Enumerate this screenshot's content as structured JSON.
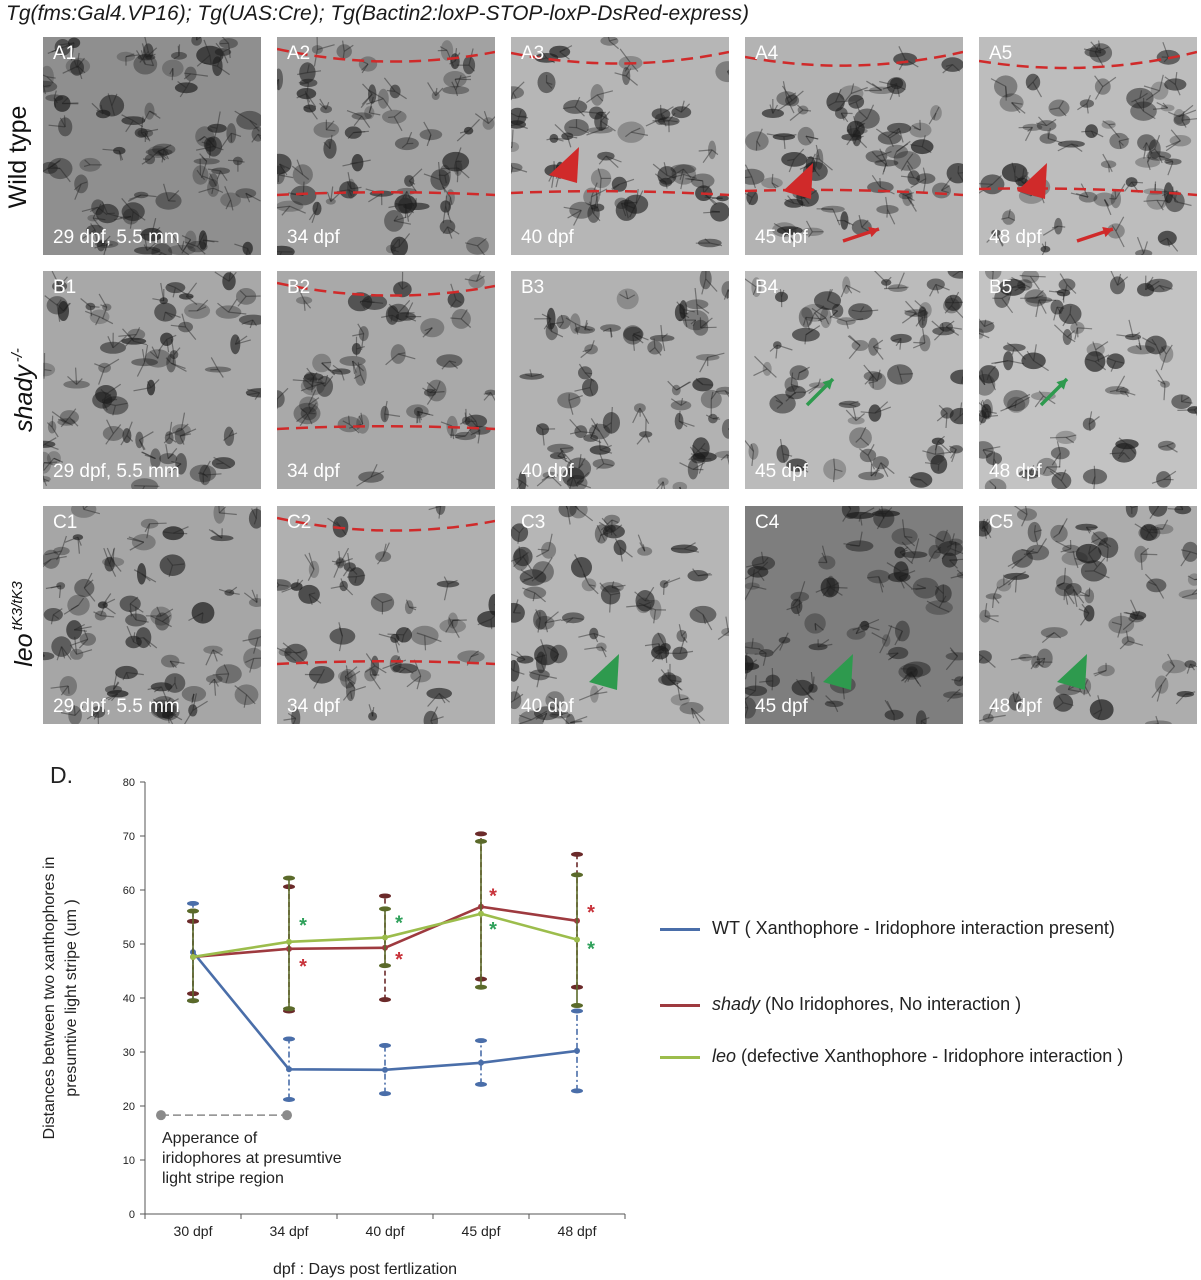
{
  "figure_title": "Tg(fms:Gal4.VP16); Tg(UAS:Cre); Tg(Bactin2:loxP-STOP-loxP-DsRed-express)",
  "rows": [
    {
      "label": "Wild type",
      "label_italic": "",
      "label_sup": "",
      "panels": [
        {
          "id": "A1",
          "age": "29 dpf, 5.5 mm",
          "bg": "#8f8f8f",
          "dashed_lines": 0,
          "marker": "none"
        },
        {
          "id": "A2",
          "age": "34 dpf",
          "bg": "#a2a2a2",
          "dashed_lines": 2,
          "marker": "none"
        },
        {
          "id": "A3",
          "age": "40 dpf",
          "bg": "#b6b6b6",
          "dashed_lines": 2,
          "marker": "red-arrowhead"
        },
        {
          "id": "A4",
          "age": "45 dpf",
          "bg": "#b3b3b3",
          "dashed_lines": 2,
          "marker": "red-arrowhead-arrow"
        },
        {
          "id": "A5",
          "age": "48 dpf",
          "bg": "#bdbdbd",
          "dashed_lines": 2,
          "marker": "red-arrowhead-arrow"
        }
      ]
    },
    {
      "label": "",
      "label_italic": "shady",
      "label_sup": "-/-",
      "panels": [
        {
          "id": "B1",
          "age": "29 dpf, 5.5 mm",
          "bg": "#a8a8a8",
          "dashed_lines": 0,
          "marker": "none"
        },
        {
          "id": "B2",
          "age": "34 dpf",
          "bg": "#a9a9a9",
          "dashed_lines": 2,
          "marker": "none"
        },
        {
          "id": "B3",
          "age": "40 dpf",
          "bg": "#b2b2b2",
          "dashed_lines": 0,
          "marker": "none"
        },
        {
          "id": "B4",
          "age": "45 dpf",
          "bg": "#bbbbbb",
          "dashed_lines": 0,
          "marker": "green-arrow"
        },
        {
          "id": "B5",
          "age": "48 dpf",
          "bg": "#c3c3c3",
          "dashed_lines": 0,
          "marker": "green-arrow"
        }
      ]
    },
    {
      "label": "",
      "label_italic": "leo",
      "label_sup": "tK3/tK3",
      "panels": [
        {
          "id": "C1",
          "age": "29 dpf, 5.5 mm",
          "bg": "#a6a6a6",
          "dashed_lines": 0,
          "marker": "none"
        },
        {
          "id": "C2",
          "age": "34 dpf",
          "bg": "#b0b0b0",
          "dashed_lines": 2,
          "marker": "none"
        },
        {
          "id": "C3",
          "age": "40 dpf",
          "bg": "#b6b6b6",
          "dashed_lines": 0,
          "marker": "green-arrowhead"
        },
        {
          "id": "C4",
          "age": "45 dpf",
          "bg": "#7e7e7e",
          "dashed_lines": 0,
          "marker": "green-arrowhead"
        },
        {
          "id": "C5",
          "age": "48 dpf",
          "bg": "#adadad",
          "dashed_lines": 0,
          "marker": "green-arrowhead"
        }
      ]
    }
  ],
  "colors": {
    "red_marker": "#d02a2a",
    "green_marker": "#2e9a4e",
    "wt": "#4a6ea9",
    "shady": "#9e3a3f",
    "leo": "#9cbd4c",
    "shady_bars": "#6b2a2a",
    "leo_bars": "#5b6a2a",
    "gray_note": "#8a8a8a"
  },
  "chart_data": {
    "letter": "D.",
    "type": "line",
    "categories": [
      "30 dpf",
      "34 dpf",
      "40 dpf",
      "45 dpf",
      "48 dpf"
    ],
    "xlabel": "dpf : Days post fertlization",
    "ylabel": "Distances between two xanthophores in presumtive light stripe (um )",
    "ylim": [
      0,
      80
    ],
    "yticks": [
      0,
      10,
      20,
      30,
      40,
      50,
      60,
      70,
      80
    ],
    "series": [
      {
        "key": "wt",
        "name": "WT ( Xanthophore - Iridophore interaction present)",
        "values": [
          48.5,
          26.8,
          26.7,
          28.0,
          30.2
        ],
        "err_low": [
          39.5,
          21.2,
          22.3,
          24.0,
          22.8
        ],
        "err_high": [
          57.5,
          32.4,
          31.2,
          32.1,
          37.6
        ]
      },
      {
        "key": "shady",
        "name": "shady (No Iridophores, No interaction )",
        "values": [
          47.6,
          49.1,
          49.3,
          56.9,
          54.3
        ],
        "err_low": [
          40.8,
          37.6,
          39.7,
          43.5,
          42.0
        ],
        "err_high": [
          54.2,
          60.6,
          58.9,
          70.4,
          66.6
        ]
      },
      {
        "key": "leo",
        "name": "leo (defective Xanthophore - Iridophore interaction )",
        "values": [
          47.6,
          50.4,
          51.2,
          55.6,
          50.8
        ],
        "err_low": [
          39.5,
          38.0,
          46.0,
          42.0,
          38.6
        ],
        "err_high": [
          56.1,
          62.2,
          56.5,
          69.0,
          62.8
        ]
      }
    ],
    "significance": [
      {
        "series": "shady",
        "categories": [
          "34 dpf",
          "40 dpf",
          "45 dpf",
          "48 dpf"
        ],
        "symbol": "*"
      },
      {
        "series": "leo",
        "categories": [
          "34 dpf",
          "40 dpf",
          "45 dpf",
          "48 dpf"
        ],
        "symbol": "*"
      }
    ],
    "annotation": {
      "text_lines": [
        "Apperance of",
        "iridophores at presumtive",
        "light stripe region"
      ],
      "from": "30 dpf",
      "to": "34 dpf",
      "y": 18.3
    },
    "legend": [
      {
        "key": "wt",
        "prefix": "",
        "text": "WT ( Xanthophore - Iridophore interaction present)"
      },
      {
        "key": "shady",
        "prefix": "shady",
        "text": " (No Iridophores, No interaction )"
      },
      {
        "key": "leo",
        "prefix": "leo",
        "text": " (defective Xanthophore - Iridophore interaction )"
      }
    ]
  }
}
